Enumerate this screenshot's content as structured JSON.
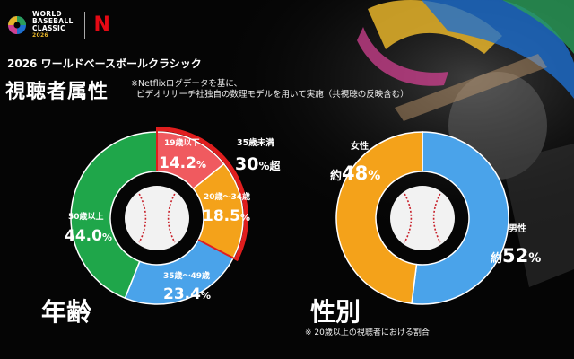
{
  "header": {
    "logo_text": "WORLD\nBASEBALL\nCLASSIC",
    "logo_year": "2026",
    "netflix_mark": "N",
    "series_title": "2026 ワールドベースボールクラシック",
    "page_title": "視聴者属性",
    "footnote_line1": "※Netflixログデータを基に、",
    "footnote_line2": "ビデオリサーチ社独自の数理モデルを用いて実施（共視聴の反映含む）"
  },
  "chart_data": [
    {
      "type": "pie",
      "title": "年齢",
      "slices": [
        {
          "label": "19歳以下",
          "value": 14.2,
          "display": "14.2",
          "unit": "%",
          "color": "#f05a5f"
        },
        {
          "label": "20歳～34歳",
          "value": 18.5,
          "display": "18.5",
          "unit": "%",
          "color": "#f4a21a"
        },
        {
          "label": "35歳～49歳",
          "value": 23.4,
          "display": "23.4",
          "unit": "%",
          "color": "#4aa3ea"
        },
        {
          "label": "50歳以上",
          "value": 44.0,
          "display": "44.0",
          "unit": "%",
          "color": "#1fa64a"
        }
      ],
      "annotation": {
        "label": "35歳未満",
        "value_text": "30",
        "unit_text": "%超",
        "color": "#e01e1e"
      }
    },
    {
      "type": "pie",
      "title": "性別",
      "slices": [
        {
          "label": "男性",
          "value": 52,
          "prefix": "約",
          "display": "52",
          "unit": "%",
          "color": "#4aa3ea"
        },
        {
          "label": "女性",
          "value": 48,
          "prefix": "約",
          "display": "48",
          "unit": "%",
          "color": "#f4a21a"
        }
      ],
      "note": "※ 20歳以上の視聴者における割合"
    }
  ],
  "colors": {
    "background": "#050505",
    "accent_red": "#e01e1e",
    "netflix_red": "#e50914"
  }
}
